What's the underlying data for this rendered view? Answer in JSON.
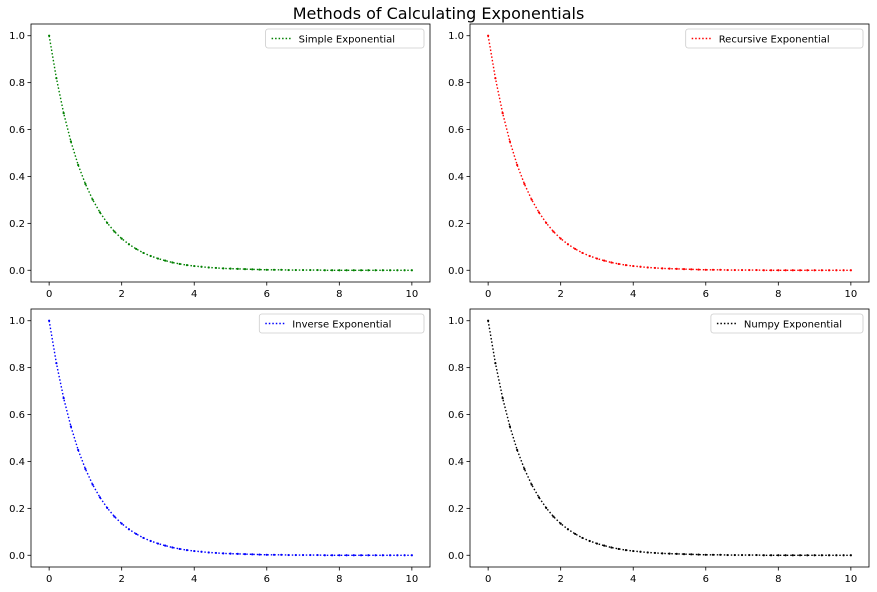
{
  "figure": {
    "title": "Methods of Calculating Exponentials"
  },
  "chart_data": [
    {
      "type": "scatter",
      "title": "",
      "xlabel": "",
      "ylabel": "",
      "xlim": [
        -0.5,
        10.5
      ],
      "ylim": [
        -0.05,
        1.05
      ],
      "xticks": [
        0,
        2,
        4,
        6,
        8,
        10
      ],
      "yticks": [
        0.0,
        0.2,
        0.4,
        0.6,
        0.8,
        1.0
      ],
      "xtick_labels": [
        "0",
        "2",
        "4",
        "6",
        "8",
        "10"
      ],
      "ytick_labels": [
        "0.0",
        "0.2",
        "0.4",
        "0.6",
        "0.8",
        "1.0"
      ],
      "grid": false,
      "legend_position": "top-right",
      "series": [
        {
          "name": "Simple Exponential",
          "color": "#008000",
          "line_style": "dotted",
          "x": [
            0.0,
            0.2,
            0.4,
            0.6,
            0.8,
            1.0,
            1.2,
            1.4,
            1.6,
            1.8,
            2.0,
            2.2,
            2.4,
            2.6,
            2.8,
            3.0,
            3.2,
            3.4,
            3.6,
            3.8,
            4.0,
            4.2,
            4.4,
            4.6,
            4.8,
            5.0,
            5.2,
            5.4,
            5.6,
            5.8,
            6.0,
            6.2,
            6.4,
            6.6,
            6.8,
            7.0,
            7.2,
            7.4,
            7.6,
            7.8,
            8.0,
            8.2,
            8.4,
            8.6,
            8.8,
            9.0,
            9.2,
            9.4,
            9.6,
            9.8,
            10.0
          ],
          "y": [
            1.0,
            0.819,
            0.67,
            0.549,
            0.449,
            0.368,
            0.301,
            0.247,
            0.202,
            0.165,
            0.135,
            0.111,
            0.091,
            0.074,
            0.061,
            0.05,
            0.041,
            0.033,
            0.027,
            0.022,
            0.018,
            0.015,
            0.012,
            0.01,
            0.008,
            0.007,
            0.006,
            0.005,
            0.004,
            0.003,
            0.002,
            0.002,
            0.002,
            0.001,
            0.001,
            0.001,
            0.001,
            0.001,
            0.0,
            0.0,
            0.0,
            0.0,
            0.0,
            0.0,
            0.0,
            0.0,
            0.0,
            0.0,
            0.0,
            0.0,
            0.0
          ]
        }
      ]
    },
    {
      "type": "scatter",
      "title": "",
      "xlabel": "",
      "ylabel": "",
      "xlim": [
        -0.5,
        10.5
      ],
      "ylim": [
        -0.05,
        1.05
      ],
      "xticks": [
        0,
        2,
        4,
        6,
        8,
        10
      ],
      "yticks": [
        0.0,
        0.2,
        0.4,
        0.6,
        0.8,
        1.0
      ],
      "xtick_labels": [
        "0",
        "2",
        "4",
        "6",
        "8",
        "10"
      ],
      "ytick_labels": [
        "0.0",
        "0.2",
        "0.4",
        "0.6",
        "0.8",
        "1.0"
      ],
      "grid": false,
      "legend_position": "top-right",
      "series": [
        {
          "name": "Recursive Exponential",
          "color": "#ff0000",
          "line_style": "dotted",
          "x": [
            0.0,
            0.2,
            0.4,
            0.6,
            0.8,
            1.0,
            1.2,
            1.4,
            1.6,
            1.8,
            2.0,
            2.2,
            2.4,
            2.6,
            2.8,
            3.0,
            3.2,
            3.4,
            3.6,
            3.8,
            4.0,
            4.2,
            4.4,
            4.6,
            4.8,
            5.0,
            5.2,
            5.4,
            5.6,
            5.8,
            6.0,
            6.2,
            6.4,
            6.6,
            6.8,
            7.0,
            7.2,
            7.4,
            7.6,
            7.8,
            8.0,
            8.2,
            8.4,
            8.6,
            8.8,
            9.0,
            9.2,
            9.4,
            9.6,
            9.8,
            10.0
          ],
          "y": [
            1.0,
            0.819,
            0.67,
            0.549,
            0.449,
            0.368,
            0.301,
            0.247,
            0.202,
            0.165,
            0.135,
            0.111,
            0.091,
            0.074,
            0.061,
            0.05,
            0.041,
            0.033,
            0.027,
            0.022,
            0.018,
            0.015,
            0.012,
            0.01,
            0.008,
            0.007,
            0.006,
            0.005,
            0.004,
            0.003,
            0.002,
            0.002,
            0.002,
            0.001,
            0.001,
            0.001,
            0.001,
            0.001,
            0.0,
            0.0,
            0.0,
            0.0,
            0.0,
            0.0,
            0.0,
            0.0,
            0.0,
            0.0,
            0.0,
            0.0,
            0.0
          ]
        }
      ]
    },
    {
      "type": "scatter",
      "title": "",
      "xlabel": "",
      "ylabel": "",
      "xlim": [
        -0.5,
        10.5
      ],
      "ylim": [
        -0.05,
        1.05
      ],
      "xticks": [
        0,
        2,
        4,
        6,
        8,
        10
      ],
      "yticks": [
        0.0,
        0.2,
        0.4,
        0.6,
        0.8,
        1.0
      ],
      "xtick_labels": [
        "0",
        "2",
        "4",
        "6",
        "8",
        "10"
      ],
      "ytick_labels": [
        "0.0",
        "0.2",
        "0.4",
        "0.6",
        "0.8",
        "1.0"
      ],
      "grid": false,
      "legend_position": "top-right",
      "series": [
        {
          "name": "Inverse Exponential",
          "color": "#0000ff",
          "line_style": "dotted",
          "x": [
            0.0,
            0.2,
            0.4,
            0.6,
            0.8,
            1.0,
            1.2,
            1.4,
            1.6,
            1.8,
            2.0,
            2.2,
            2.4,
            2.6,
            2.8,
            3.0,
            3.2,
            3.4,
            3.6,
            3.8,
            4.0,
            4.2,
            4.4,
            4.6,
            4.8,
            5.0,
            5.2,
            5.4,
            5.6,
            5.8,
            6.0,
            6.2,
            6.4,
            6.6,
            6.8,
            7.0,
            7.2,
            7.4,
            7.6,
            7.8,
            8.0,
            8.2,
            8.4,
            8.6,
            8.8,
            9.0,
            9.2,
            9.4,
            9.6,
            9.8,
            10.0
          ],
          "y": [
            1.0,
            0.819,
            0.67,
            0.549,
            0.449,
            0.368,
            0.301,
            0.247,
            0.202,
            0.165,
            0.135,
            0.111,
            0.091,
            0.074,
            0.061,
            0.05,
            0.041,
            0.033,
            0.027,
            0.022,
            0.018,
            0.015,
            0.012,
            0.01,
            0.008,
            0.007,
            0.006,
            0.005,
            0.004,
            0.003,
            0.002,
            0.002,
            0.002,
            0.001,
            0.001,
            0.001,
            0.001,
            0.001,
            0.0,
            0.0,
            0.0,
            0.0,
            0.0,
            0.0,
            0.0,
            0.0,
            0.0,
            0.0,
            0.0,
            0.0,
            0.0
          ]
        }
      ]
    },
    {
      "type": "scatter",
      "title": "",
      "xlabel": "",
      "ylabel": "",
      "xlim": [
        -0.5,
        10.5
      ],
      "ylim": [
        -0.05,
        1.05
      ],
      "xticks": [
        0,
        2,
        4,
        6,
        8,
        10
      ],
      "yticks": [
        0.0,
        0.2,
        0.4,
        0.6,
        0.8,
        1.0
      ],
      "xtick_labels": [
        "0",
        "2",
        "4",
        "6",
        "8",
        "10"
      ],
      "ytick_labels": [
        "0.0",
        "0.2",
        "0.4",
        "0.6",
        "0.8",
        "1.0"
      ],
      "grid": false,
      "legend_position": "top-right",
      "series": [
        {
          "name": "Numpy Exponential",
          "color": "#000000",
          "line_style": "dotted",
          "x": [
            0.0,
            0.2,
            0.4,
            0.6,
            0.8,
            1.0,
            1.2,
            1.4,
            1.6,
            1.8,
            2.0,
            2.2,
            2.4,
            2.6,
            2.8,
            3.0,
            3.2,
            3.4,
            3.6,
            3.8,
            4.0,
            4.2,
            4.4,
            4.6,
            4.8,
            5.0,
            5.2,
            5.4,
            5.6,
            5.8,
            6.0,
            6.2,
            6.4,
            6.6,
            6.8,
            7.0,
            7.2,
            7.4,
            7.6,
            7.8,
            8.0,
            8.2,
            8.4,
            8.6,
            8.8,
            9.0,
            9.2,
            9.4,
            9.6,
            9.8,
            10.0
          ],
          "y": [
            1.0,
            0.819,
            0.67,
            0.549,
            0.449,
            0.368,
            0.301,
            0.247,
            0.202,
            0.165,
            0.135,
            0.111,
            0.091,
            0.074,
            0.061,
            0.05,
            0.041,
            0.033,
            0.027,
            0.022,
            0.018,
            0.015,
            0.012,
            0.01,
            0.008,
            0.007,
            0.006,
            0.005,
            0.004,
            0.003,
            0.002,
            0.002,
            0.002,
            0.001,
            0.001,
            0.001,
            0.001,
            0.001,
            0.0,
            0.0,
            0.0,
            0.0,
            0.0,
            0.0,
            0.0,
            0.0,
            0.0,
            0.0,
            0.0,
            0.0,
            0.0
          ]
        }
      ]
    }
  ]
}
